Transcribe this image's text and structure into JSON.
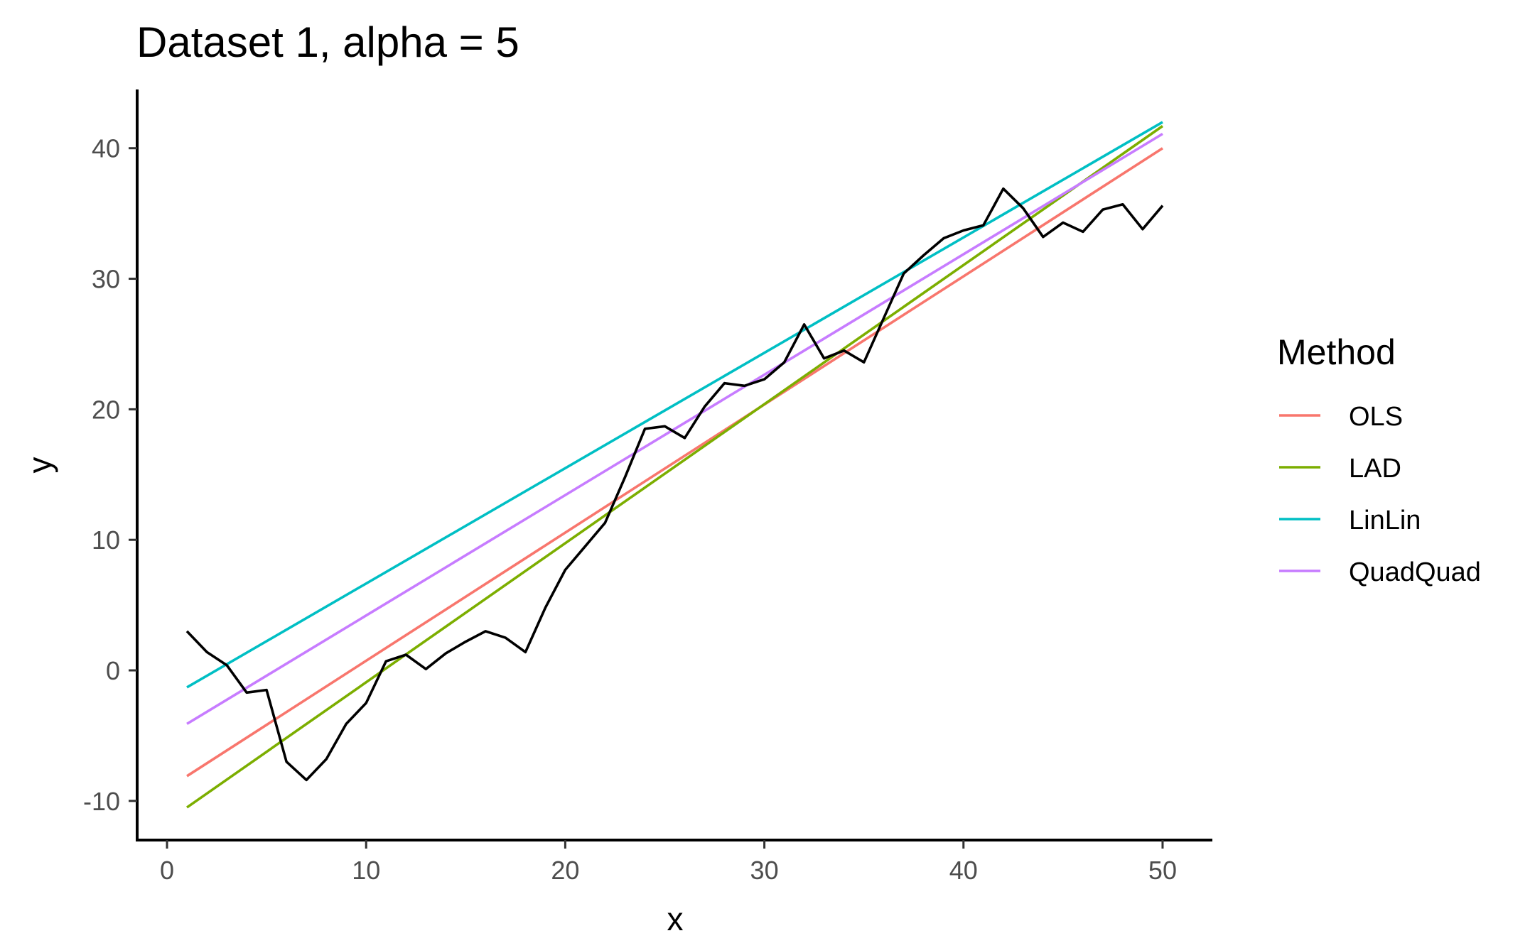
{
  "chart_data": {
    "type": "line",
    "title": "Dataset 1, alpha = 5",
    "xlabel": "x",
    "ylabel": "y",
    "xlim": [
      -1.5,
      52.5
    ],
    "ylim": [
      -13,
      44.5
    ],
    "x_ticks": [
      0,
      10,
      20,
      30,
      40,
      50
    ],
    "y_ticks": [
      -10,
      0,
      10,
      20,
      30,
      40
    ],
    "grid": false,
    "legend_title": "Method",
    "legend_position": "right",
    "observed": {
      "color": "#000000",
      "x": [
        1,
        2,
        3,
        4,
        5,
        6,
        7,
        8,
        9,
        10,
        11,
        12,
        13,
        14,
        15,
        16,
        17,
        18,
        19,
        20,
        21,
        22,
        23,
        24,
        25,
        26,
        27,
        28,
        29,
        30,
        31,
        32,
        33,
        34,
        35,
        36,
        37,
        38,
        39,
        40,
        41,
        42,
        43,
        44,
        45,
        46,
        47,
        48,
        49,
        50
      ],
      "y": [
        3.0,
        1.4,
        0.4,
        -1.7,
        -1.5,
        -7.0,
        -8.4,
        -6.8,
        -4.1,
        -2.5,
        0.7,
        1.2,
        0.1,
        1.3,
        2.2,
        3.0,
        2.5,
        1.4,
        4.8,
        7.7,
        9.5,
        11.3,
        14.8,
        18.5,
        18.7,
        17.8,
        20.2,
        22.0,
        21.8,
        22.3,
        23.6,
        26.5,
        23.9,
        24.5,
        23.6,
        27.0,
        30.4,
        31.8,
        33.1,
        33.7,
        34.1,
        36.9,
        35.4,
        33.2,
        34.3,
        33.6,
        35.3,
        35.7,
        33.8,
        35.6
      ]
    },
    "series": [
      {
        "name": "OLS",
        "color": "#F8766D",
        "x": [
          1,
          50
        ],
        "y": [
          -8.1,
          40.0
        ]
      },
      {
        "name": "LAD",
        "color": "#7CAE00",
        "x": [
          1,
          50
        ],
        "y": [
          -10.5,
          41.7
        ]
      },
      {
        "name": "LinLin",
        "color": "#00BFC4",
        "x": [
          1,
          50
        ],
        "y": [
          -1.3,
          42.0
        ]
      },
      {
        "name": "QuadQuad",
        "color": "#C77CFF",
        "x": [
          1,
          50
        ],
        "y": [
          -4.1,
          41.1
        ]
      }
    ]
  }
}
